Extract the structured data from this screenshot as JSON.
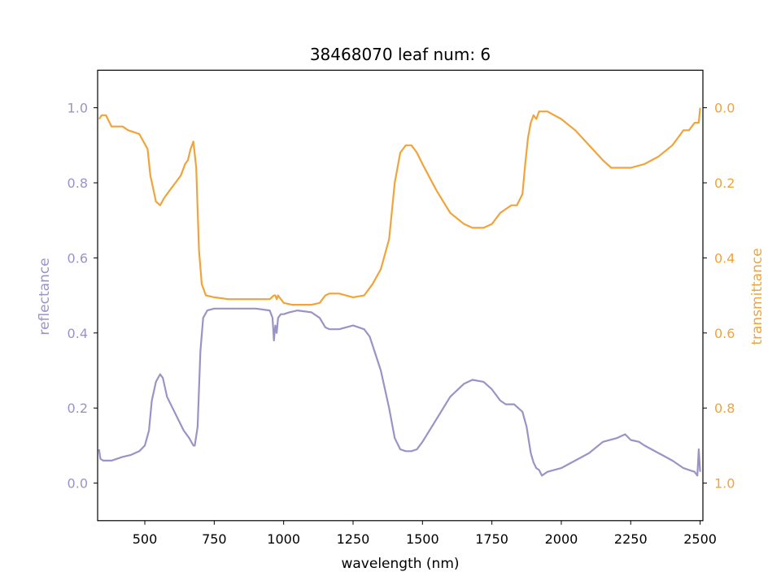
{
  "chart_data": {
    "type": "line",
    "title": "38468070 leaf num: 6",
    "xlabel": "wavelength (nm)",
    "ylabel_left": "reflectance",
    "ylabel_right": "transmittance",
    "xlim": [
      330,
      2510
    ],
    "ylim_left": [
      -0.1,
      1.1
    ],
    "ylim_right": [
      1.1,
      -0.1
    ],
    "x_ticks": [
      500,
      750,
      1000,
      1250,
      1500,
      1750,
      2000,
      2250,
      2500
    ],
    "y_ticks_left": [
      0.0,
      0.2,
      0.4,
      0.6,
      0.8,
      1.0
    ],
    "y_ticks_right": [
      0.0,
      0.2,
      0.4,
      0.6,
      0.8,
      1.0
    ],
    "grid": false,
    "colors": {
      "reflectance": "#9a94c6",
      "transmittance": "#f0a43a",
      "axis": "#000000"
    },
    "series": [
      {
        "axis": "left",
        "color": "#9a94c6",
        "x": [
          335,
          340,
          350,
          380,
          420,
          450,
          480,
          500,
          515,
          525,
          540,
          555,
          565,
          580,
          600,
          620,
          640,
          660,
          675,
          680,
          690,
          700,
          710,
          725,
          750,
          800,
          900,
          950,
          960,
          965,
          970,
          975,
          980,
          990,
          1000,
          1020,
          1050,
          1100,
          1130,
          1150,
          1165,
          1200,
          1250,
          1290,
          1310,
          1350,
          1380,
          1400,
          1420,
          1440,
          1460,
          1480,
          1500,
          1550,
          1600,
          1650,
          1680,
          1720,
          1750,
          1780,
          1800,
          1830,
          1860,
          1875,
          1890,
          1900,
          1910,
          1920,
          1930,
          1950,
          2000,
          2050,
          2100,
          2150,
          2200,
          2230,
          2250,
          2280,
          2300,
          2350,
          2400,
          2420,
          2440,
          2460,
          2480,
          2490,
          2495,
          2500
        ],
        "y": [
          0.09,
          0.065,
          0.06,
          0.06,
          0.07,
          0.075,
          0.085,
          0.1,
          0.14,
          0.22,
          0.27,
          0.29,
          0.28,
          0.23,
          0.2,
          0.17,
          0.14,
          0.12,
          0.1,
          0.1,
          0.15,
          0.35,
          0.44,
          0.46,
          0.465,
          0.465,
          0.465,
          0.46,
          0.44,
          0.38,
          0.42,
          0.4,
          0.44,
          0.45,
          0.45,
          0.455,
          0.46,
          0.455,
          0.44,
          0.415,
          0.41,
          0.41,
          0.42,
          0.41,
          0.39,
          0.3,
          0.2,
          0.12,
          0.09,
          0.085,
          0.085,
          0.09,
          0.11,
          0.17,
          0.23,
          0.265,
          0.275,
          0.27,
          0.25,
          0.22,
          0.21,
          0.21,
          0.19,
          0.15,
          0.08,
          0.055,
          0.04,
          0.035,
          0.02,
          0.03,
          0.04,
          0.06,
          0.08,
          0.11,
          0.12,
          0.13,
          0.115,
          0.11,
          0.1,
          0.08,
          0.06,
          0.05,
          0.04,
          0.035,
          0.03,
          0.02,
          0.09,
          0.03
        ]
      },
      {
        "axis": "right",
        "color": "#f0a43a",
        "x": [
          335,
          345,
          360,
          380,
          400,
          420,
          440,
          460,
          480,
          495,
          510,
          520,
          540,
          555,
          570,
          590,
          610,
          630,
          645,
          655,
          665,
          675,
          685,
          695,
          705,
          720,
          750,
          800,
          900,
          950,
          965,
          970,
          975,
          980,
          990,
          1000,
          1030,
          1100,
          1130,
          1150,
          1165,
          1200,
          1250,
          1290,
          1320,
          1350,
          1380,
          1400,
          1420,
          1440,
          1460,
          1480,
          1500,
          1550,
          1600,
          1650,
          1680,
          1720,
          1750,
          1780,
          1820,
          1840,
          1860,
          1870,
          1880,
          1890,
          1900,
          1910,
          1920,
          1950,
          2000,
          2050,
          2100,
          2150,
          2180,
          2200,
          2250,
          2300,
          2350,
          2400,
          2420,
          2440,
          2460,
          2480,
          2495,
          2500
        ],
        "y": [
          0.03,
          0.02,
          0.02,
          0.05,
          0.05,
          0.05,
          0.06,
          0.065,
          0.07,
          0.09,
          0.11,
          0.18,
          0.25,
          0.26,
          0.24,
          0.22,
          0.2,
          0.18,
          0.15,
          0.14,
          0.11,
          0.09,
          0.16,
          0.38,
          0.47,
          0.5,
          0.505,
          0.51,
          0.51,
          0.51,
          0.5,
          0.5,
          0.51,
          0.5,
          0.51,
          0.52,
          0.525,
          0.525,
          0.52,
          0.5,
          0.495,
          0.495,
          0.505,
          0.5,
          0.47,
          0.43,
          0.35,
          0.2,
          0.12,
          0.1,
          0.1,
          0.12,
          0.15,
          0.22,
          0.28,
          0.31,
          0.32,
          0.32,
          0.31,
          0.28,
          0.26,
          0.26,
          0.23,
          0.15,
          0.08,
          0.04,
          0.02,
          0.03,
          0.01,
          0.01,
          0.03,
          0.06,
          0.1,
          0.14,
          0.16,
          0.16,
          0.16,
          0.15,
          0.13,
          0.1,
          0.08,
          0.06,
          0.06,
          0.04,
          0.04,
          0
        ]
      }
    ]
  }
}
